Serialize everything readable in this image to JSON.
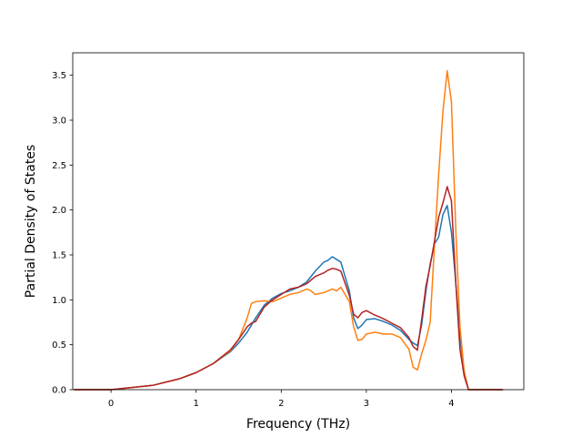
{
  "chart_data": {
    "type": "line",
    "title": "",
    "xlabel": "Frequency (THz)",
    "ylabel": "Partial Density of States",
    "xlim": [
      -0.45,
      4.85
    ],
    "ylim": [
      0.0,
      3.75
    ],
    "xticks": [
      0,
      1,
      2,
      3,
      4
    ],
    "yticks": [
      0.0,
      0.5,
      1.0,
      1.5,
      2.0,
      2.5,
      3.0,
      3.5
    ],
    "ytick_labels": [
      "0.0",
      "0.5",
      "1.0",
      "1.5",
      "2.0",
      "2.5",
      "3.0",
      "3.5"
    ],
    "grid": false,
    "legend": "none",
    "series": [
      {
        "color": "#1f77b4",
        "x": [
          -0.43,
          0,
          0.5,
          0.8,
          1.0,
          1.2,
          1.4,
          1.5,
          1.6,
          1.7,
          1.8,
          1.9,
          2.0,
          2.1,
          2.2,
          2.3,
          2.4,
          2.5,
          2.55,
          2.6,
          2.65,
          2.7,
          2.8,
          2.85,
          2.9,
          2.95,
          3.0,
          3.1,
          3.2,
          3.3,
          3.4,
          3.5,
          3.55,
          3.6,
          3.65,
          3.7,
          3.75,
          3.8,
          3.85,
          3.9,
          3.95,
          4.0,
          4.05,
          4.1,
          4.15,
          4.2,
          4.3,
          4.6
        ],
        "y": [
          0,
          0,
          0.05,
          0.12,
          0.19,
          0.29,
          0.42,
          0.52,
          0.64,
          0.8,
          0.94,
          1.02,
          1.07,
          1.1,
          1.14,
          1.2,
          1.32,
          1.42,
          1.44,
          1.48,
          1.45,
          1.42,
          1.1,
          0.8,
          0.68,
          0.72,
          0.78,
          0.79,
          0.76,
          0.72,
          0.66,
          0.56,
          0.52,
          0.49,
          0.72,
          1.1,
          1.4,
          1.62,
          1.7,
          1.95,
          2.05,
          1.75,
          1.2,
          0.6,
          0.2,
          0,
          0,
          0
        ]
      },
      {
        "color": "#ff7f0e",
        "x": [
          -0.43,
          0,
          0.5,
          0.8,
          1.0,
          1.2,
          1.4,
          1.5,
          1.6,
          1.65,
          1.7,
          1.8,
          1.9,
          2.0,
          2.1,
          2.2,
          2.3,
          2.35,
          2.4,
          2.5,
          2.55,
          2.6,
          2.65,
          2.7,
          2.8,
          2.85,
          2.9,
          2.95,
          3.0,
          3.1,
          3.2,
          3.3,
          3.4,
          3.5,
          3.55,
          3.6,
          3.65,
          3.7,
          3.75,
          3.8,
          3.85,
          3.9,
          3.95,
          4.0,
          4.05,
          4.1,
          4.15,
          4.2,
          4.3,
          4.6
        ],
        "y": [
          0,
          0,
          0.05,
          0.12,
          0.19,
          0.29,
          0.43,
          0.56,
          0.8,
          0.96,
          0.98,
          0.99,
          0.98,
          1.02,
          1.06,
          1.08,
          1.12,
          1.1,
          1.06,
          1.08,
          1.1,
          1.12,
          1.1,
          1.14,
          0.98,
          0.7,
          0.55,
          0.56,
          0.62,
          0.64,
          0.62,
          0.62,
          0.58,
          0.45,
          0.25,
          0.22,
          0.4,
          0.55,
          0.75,
          1.6,
          2.4,
          3.1,
          3.55,
          3.2,
          1.8,
          0.7,
          0.2,
          0,
          0,
          0
        ]
      },
      {
        "color": "#b22222",
        "x": [
          -0.43,
          0,
          0.5,
          0.8,
          1.0,
          1.2,
          1.4,
          1.5,
          1.6,
          1.65,
          1.7,
          1.8,
          1.9,
          2.0,
          2.1,
          2.2,
          2.3,
          2.4,
          2.5,
          2.55,
          2.6,
          2.65,
          2.7,
          2.8,
          2.85,
          2.9,
          2.95,
          3.0,
          3.1,
          3.2,
          3.3,
          3.4,
          3.5,
          3.55,
          3.6,
          3.65,
          3.7,
          3.75,
          3.8,
          3.85,
          3.9,
          3.95,
          4.0,
          4.05,
          4.1,
          4.15,
          4.2,
          4.3,
          4.6
        ],
        "y": [
          0,
          0,
          0.05,
          0.12,
          0.19,
          0.29,
          0.44,
          0.56,
          0.7,
          0.74,
          0.76,
          0.92,
          1.0,
          1.06,
          1.12,
          1.14,
          1.18,
          1.26,
          1.3,
          1.33,
          1.35,
          1.34,
          1.32,
          1.05,
          0.84,
          0.8,
          0.86,
          0.88,
          0.83,
          0.79,
          0.74,
          0.69,
          0.58,
          0.48,
          0.44,
          0.78,
          1.15,
          1.38,
          1.65,
          1.92,
          2.08,
          2.26,
          2.1,
          1.2,
          0.45,
          0.15,
          0,
          0,
          0
        ]
      }
    ]
  }
}
